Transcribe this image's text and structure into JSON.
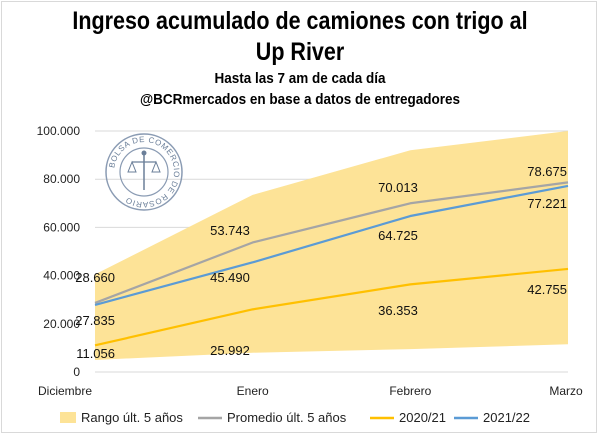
{
  "title_line1": "Ingreso acumulado de camiones con trigo al",
  "title_line2": "Up River",
  "subtitle1": "Hasta las 7 am de cada día",
  "subtitle2": "@BCRmercados en base a datos de entregadores",
  "logo_text": "BOLSA DE COMERCIO DE ROSARIO",
  "chart_data": {
    "type": "line",
    "categories": [
      "Diciembre",
      "Enero",
      "Febrero",
      "Marzo"
    ],
    "ylim": [
      0,
      100000
    ],
    "yticks": [
      {
        "value": 0,
        "label": "0"
      },
      {
        "value": 20000,
        "label": "20.000"
      },
      {
        "value": 40000,
        "label": "40.000"
      },
      {
        "value": 60000,
        "label": "60.000"
      },
      {
        "value": 80000,
        "label": "80.000"
      },
      {
        "value": 100000,
        "label": "100.000"
      }
    ],
    "grid": true,
    "legend_position": "bottom",
    "range": {
      "name": "Rango últ. 5 años",
      "color": "#fde397",
      "low": [
        5000,
        8000,
        9500,
        11500
      ],
      "high": [
        40500,
        73500,
        92000,
        100000
      ]
    },
    "series": [
      {
        "name": "Promedio últ. 5 años",
        "color": "#a5a5a5",
        "values": [
          28660,
          53743,
          70013,
          78675
        ],
        "labels": [
          "28.660",
          "53.743",
          "70.013",
          "78.675"
        ]
      },
      {
        "name": "2020/21",
        "color": "#ffc000",
        "values": [
          11056,
          25992,
          36353,
          42755
        ],
        "labels": [
          "11.056",
          "25.992",
          "36.353",
          "42.755"
        ]
      },
      {
        "name": "2021/22",
        "color": "#5b9bd5",
        "values": [
          27835,
          45490,
          64725,
          77221
        ],
        "labels": [
          "27.835",
          "45.490",
          "64.725",
          "77.221"
        ]
      }
    ]
  }
}
